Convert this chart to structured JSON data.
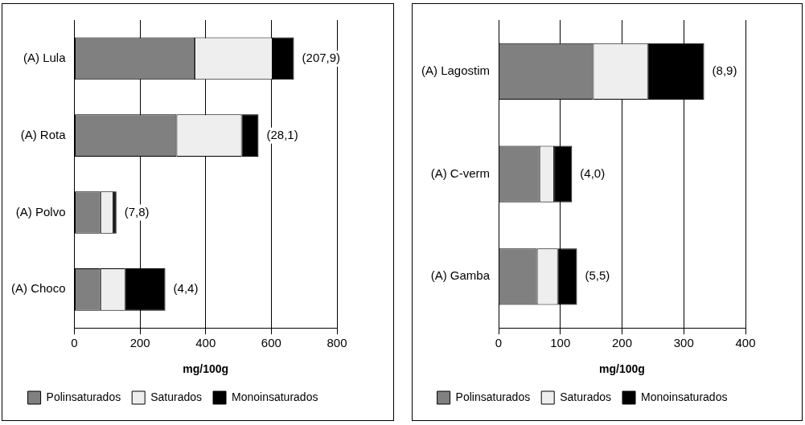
{
  "chart_data": [
    {
      "type": "bar",
      "orientation": "horizontal",
      "stacked": true,
      "categories": [
        "(A) Lula",
        "(A) Rota",
        "(A) Polvo",
        "(A) Choco"
      ],
      "series": [
        {
          "name": "Polinsaturados",
          "color": "#808080",
          "values": [
            366,
            311,
            79,
            79
          ]
        },
        {
          "name": "Saturados",
          "color": "#eeeeee",
          "values": [
            238,
            199,
            40,
            76
          ]
        },
        {
          "name": "Monoinsaturados",
          "color": "#000000",
          "values": [
            65,
            51,
            9,
            122
          ]
        }
      ],
      "xlabel": "mg/100g",
      "xlim": [
        0,
        800
      ],
      "xticks": [
        0,
        200,
        400,
        600,
        800
      ],
      "grid": "x",
      "legend": "bottom",
      "annotations": [
        {
          "text": "(207,9)",
          "x": 669,
          "y": "(A) Lula"
        },
        {
          "text": "(28,1)",
          "x": 561,
          "y": "(A) Rota"
        },
        {
          "text": "(7,8)",
          "x": 128,
          "y": "(A) Polvo"
        },
        {
          "text": "(4,4)",
          "x": 277,
          "y": "(A) Choco"
        }
      ]
    },
    {
      "type": "bar",
      "orientation": "horizontal",
      "stacked": true,
      "categories": [
        "(A) Lagostim",
        "(A) C-verm",
        "(A) Gamba"
      ],
      "series": [
        {
          "name": "Polinsaturados",
          "color": "#808080",
          "values": [
            153,
            66,
            62
          ]
        },
        {
          "name": "Saturados",
          "color": "#eeeeee",
          "values": [
            89,
            24,
            34
          ]
        },
        {
          "name": "Monoinsaturados",
          "color": "#000000",
          "values": [
            91,
            29,
            31
          ]
        }
      ],
      "xlabel": "mg/100g",
      "xlim": [
        0,
        400
      ],
      "xticks": [
        0,
        100,
        200,
        300,
        400
      ],
      "grid": "x",
      "legend": "bottom",
      "annotations": [
        {
          "text": "(8,9)",
          "x": 333,
          "y": "(A) Lagostim"
        },
        {
          "text": "(4,0)",
          "x": 119,
          "y": "(A) C-verm"
        },
        {
          "text": "(5,5)",
          "x": 127,
          "y": "(A) Gamba"
        }
      ]
    }
  ]
}
